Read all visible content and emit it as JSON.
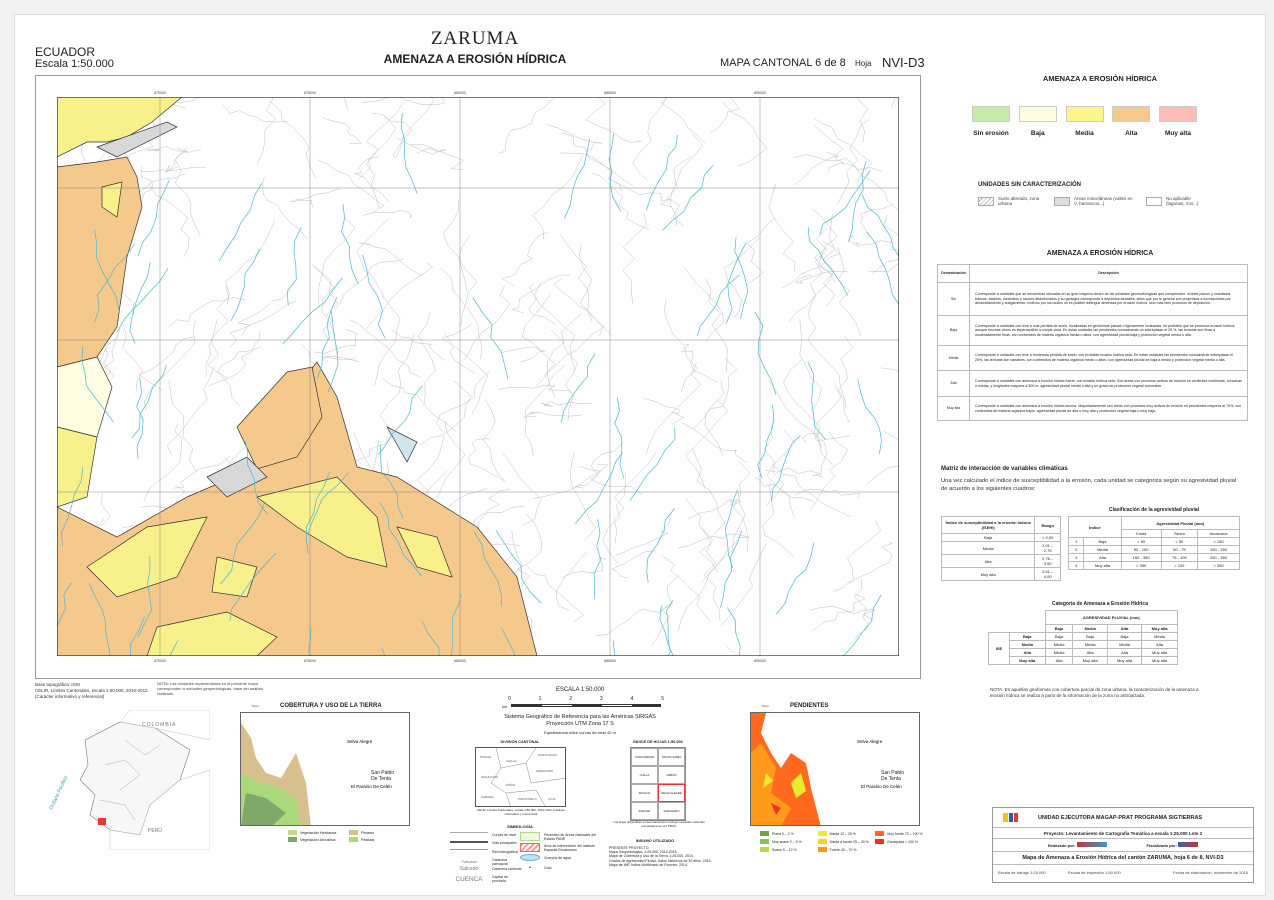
{
  "header": {
    "country": "ECUADOR",
    "scale": "Escala 1:50.000",
    "title": "ZARUMA",
    "subtitle": "AMENAZA A EROSIÓN HÍDRICA",
    "sheet_label": "MAPA CANTONAL  6 de 8",
    "hoja_label": "Hoja",
    "sheet_code": "NVI-D3"
  },
  "map": {
    "easting_labels": [
      "670000",
      "675000",
      "680000",
      "685000",
      "690000"
    ],
    "colors": {
      "alta": "#f5c88c",
      "media": "#f8f08a",
      "baja": "#fffde2",
      "river": "#4ab7d6",
      "contour": "#bdbdbd"
    },
    "base_note": [
      "Base topográfica: IGM",
      "CELIR, Límites Cantonales, escala 1:50.000, 2010-2012.",
      "(Carácter informativo y referencial)"
    ],
    "nota": "NOTA: Las unidades representadas en el presente mapa corresponden a unidades geopedológicas, base del análisis realizado."
  },
  "legend": {
    "title": "AMENAZA A EROSIÓN HÍDRICA",
    "classes": [
      {
        "label": "Sin erosión",
        "color": "#c5eba6"
      },
      {
        "label": "Baja",
        "color": "#fffde0"
      },
      {
        "label": "Media",
        "color": "#fbf58a"
      },
      {
        "label": "Alta",
        "color": "#f8c98e"
      },
      {
        "label": "Muy alta",
        "color": "#fbbdb6"
      }
    ],
    "uncharacterized_title": "UNIDADES SIN CARACTERIZACIÓN",
    "uncharacterized": [
      {
        "label": "Suelo alterado, zona urbana"
      },
      {
        "label": "Áreas misceláneas (valles en V, barrancos...)"
      },
      {
        "label": "No aplicable (lagunas, ríos...)"
      }
    ]
  },
  "description_table": {
    "title": "AMENAZA A EROSIÓN HÍDRICA",
    "headers": [
      "Denominación",
      "Descripción"
    ],
    "rows": [
      {
        "name": "Sin",
        "text": "Corresponde a unidades que se encuentran ubicadas en su gran mayoría dentro de las unidades geomorfológicas que comprenden: niveles planos y ondulados, bancos, bacines, meandros y cauces abandonados y su geología corresponde a depósitos aluviales, sitios que por lo general son propensos a inundaciones por desbordamiento y anegamiento, motivos por los cuales no es posible distinguir amenaza por erosión hídrica, sino más bien procesos de deposición."
      },
      {
        "name": "Baja",
        "text": "Corresponde a unidades con leve a nula pérdida de suelo, localizadas en geoformas planas o ligeramente inclinadas, es probable que se produzca erosión hídrica, aunque muchas veces es imperceptible a simple vista. En estas unidades las pendientes normalmente no sobrepasan el 25 %, las texturas son finas a moderadamente finas, con contenidos de materia orgánica media o altos, con agresividad pluvial baja y protección vegetal media o alta."
      },
      {
        "name": "Media",
        "text": "Corresponde a unidades con leve a moderada pérdida de suelo, con probable erosión hídrica neta. En estas unidades las pendientes normalmente sobrepasan el 25%, las texturas son variables, con contenidos de materia orgánica medio o altos, con agresividad pluvial de baja a media y protección vegetal media o alta."
      },
      {
        "name": "Alta",
        "text": "Corresponde a unidades con amenaza a erosión hídrica fuerte, con erosión hídrica neta. Son áreas con procesos activos de erosión en vertientes rectilíneas, cóncavas o mixtas, y longitudes mayores a 500 m, agresividad pluvial media o alta y un grado de protección vegetal vulnerable."
      },
      {
        "name": "Muy alta",
        "text": "Corresponde a unidades con amenaza a erosión hídrica severa. Mayoritariamente son áreas con procesos muy activos de erosión en pendientes mayores al 70%, con contenidos de materia orgánica bajos, agresividad pluvial de alta o muy alta y protección vegetal baja o muy baja."
      }
    ]
  },
  "matrix": {
    "title": "Matriz de interacción de variables climáticas",
    "intro": "Una vez calculado el índice de susceptibilidad a la erosión, cada unidad se categoriza según su agresividad pluvial de acuerdo a los siguientes cuadros:",
    "isehi": {
      "headers": [
        "Índice de susceptibilidad a la erosión hídrica (ISEHI)",
        "Rango"
      ],
      "rows": [
        [
          "Baja",
          "< 2,00"
        ],
        [
          "Media",
          "2,01 – 2,75"
        ],
        [
          "Alta",
          "2,76 – 3,50"
        ],
        [
          "Muy alta",
          "3,51 – 4,00"
        ]
      ]
    },
    "pluvial": {
      "title": "Clasificación de la agresividad pluvial",
      "index_header": "Índice",
      "group_header": "Agresividad Pluvial (mm)",
      "cols": [
        "Costa",
        "Sierra",
        "Amazonía"
      ],
      "rows": [
        [
          "1",
          "Baja",
          "< 50",
          "< 50",
          "< 150"
        ],
        [
          "2",
          "Media",
          "50 - 150",
          "50 - 75",
          "150 - 250"
        ],
        [
          "3",
          "Alta",
          "150 - 350",
          "75 - 100",
          "250 - 350"
        ],
        [
          "4",
          "Muy alta",
          "> 350",
          "> 100",
          "> 350"
        ]
      ]
    }
  },
  "category": {
    "title": "Categoría de Amenaza a Erosión Hídrica",
    "group_header": "AGRESIVIDAD PLUVIAL (mm)",
    "row_header": "ISE",
    "cols": [
      "Bajo",
      "Media",
      "Alta",
      "Muy alta"
    ],
    "rows": [
      [
        "Baja",
        "Baja",
        "Baja",
        "Baja",
        "Media"
      ],
      [
        "Media",
        "Media",
        "Media",
        "Media",
        "Alta"
      ],
      [
        "Alta",
        "Media",
        "Alta",
        "Alta",
        "Muy alta"
      ],
      [
        "Muy alta",
        "Alta",
        "Muy alta",
        "Muy alta",
        "Muy alta"
      ]
    ],
    "note": "NOTA:  En aquellas geoformas con cobertura parcial de zona urbana, la caracterización de la amenaza a erosión hídrica se realiza a partir de la información de la zona no antrópizada."
  },
  "scale": {
    "title": "ESCALA 1:50.000",
    "unit": "km",
    "ticks": [
      "0",
      "1",
      "2",
      "3",
      "4",
      "5"
    ],
    "ref1": "Sistema Geográfico de Referencia para las Américas SIRGAS",
    "ref2": "Proyección UTM Zona 17 S",
    "contour": "Equidistancia entre curvas de nivel 40 m"
  },
  "division": {
    "title": "DIVISIÓN CANTONAL",
    "names": [
      "PASAJE",
      "CHILLA",
      "SANTA ROSA",
      "ATAHUALPA",
      "SARAGURO",
      "PIÑAS",
      "ZARUMA",
      "PORTOVELO",
      "LOJA"
    ],
    "note": "CELIR, Límites Cantonales, escala 1:50.000, 2010-2012 (Carácter informativo y referencial)"
  },
  "index": {
    "title": "ÍNDICE DE HOJAS 1:50.000",
    "cells": [
      "USHCURRUMI",
      "SANTA ISABEL",
      "CHILLA",
      "NABÓN",
      "PACCHA",
      "SELVA ALEGRE",
      "ZARUMA",
      "SARAGURO"
    ],
    "note": "Las hojas disponibles a nivel cantonal no incluyen aquellas cubiertas completamente por PRAS."
  },
  "symbology": {
    "title": "SIMBOLOGÍA",
    "items": [
      "Curvas de nivel",
      "Vías principales",
      "Red hidrográfica",
      "Cabecera parroquial",
      "Cabecera cantonal",
      "Capital de provincia",
      "Perímetro de Áreas Naturales del Estado PANE",
      "Área de intervención del Instituto Espacial Ecuatoriano",
      "Cuerpos de agua",
      "Cota"
    ],
    "samples": [
      "Pallcasa",
      "Salcedo",
      "CUENCA"
    ]
  },
  "insumo": {
    "title": "INSUMO UTILIZADO",
    "lines": [
      "PRESENTE PROYECTO:",
      "Mapa Geopedológico, 1:25.000, 2014-2015.",
      "Mapa de Cobertura y Uso de la Tierra, 1:25.000, 2014.",
      "Grados de Agresividad Pluvial, Datos históricos de 30 años, 2014.",
      "Mapa de IMF, Índice Modificado de Fournier, 2014."
    ]
  },
  "cobertura": {
    "title": "COBERTURA Y USO DE LA TIERRA",
    "scale": "5 km",
    "places": [
      "Selva Alegre",
      "El Paraíso De Celén",
      "San Pablo De Tenta"
    ],
    "legend": [
      {
        "label": "Vegetación Herbácea",
        "color": "#c2d98f"
      },
      {
        "label": "Páramo",
        "color": "#d8bf8e"
      },
      {
        "label": "Vegetación Arbustiva",
        "color": "#7fa86a"
      },
      {
        "label": "Pastizal",
        "color": "#a9d97a"
      }
    ]
  },
  "pendientes": {
    "title": "PENDIENTES",
    "scale": "5 km",
    "places": [
      "Selva Alegre",
      "El Paraíso De Celén",
      "San Pablo De Tenta"
    ],
    "legend": [
      {
        "label": "Plana 0 – 2 %",
        "color": "#6aa84f"
      },
      {
        "label": "Muy suave 2 – 5 %",
        "color": "#8cc152"
      },
      {
        "label": "Suave 5 – 12 %",
        "color": "#b5d94a"
      },
      {
        "label": "Media 12 – 25 %",
        "color": "#e8ec2e"
      },
      {
        "label": "Media a fuerte 25 – 40 %",
        "color": "#ffd21f"
      },
      {
        "label": "Fuerte 40 – 70 %",
        "color": "#ff9a1a"
      },
      {
        "label": "Muy fuerte 70 – 100 %",
        "color": "#ff6a1f"
      },
      {
        "label": "Escarpada > 100 %",
        "color": "#f2302a"
      }
    ]
  },
  "inset": {
    "countries": [
      "COLOMBIA",
      "PERÚ"
    ],
    "ocean": "Océano Pacífico"
  },
  "footer": {
    "unit": "UNIDAD EJECUTORA MAGAP-PRAT PROGRAMA SIGTIERRAS",
    "project": "Proyecto:  Levantamiento de Cartografía Temática a escala 1:25.000  Lote 2",
    "realizado": "Realizado por:",
    "fiscalizado": "Fiscalizado por:",
    "map_title": "Mapa de Amenaza a Erosión Hídrica del cantón ZARUMA, hoja 6 de 8, NVI-D3",
    "work_scale": "Escala de trabajo 1:25.000",
    "print_scale": "Escala de impresión 1:50.000",
    "date": "Fecha de elaboración: noviembre de 2015"
  }
}
